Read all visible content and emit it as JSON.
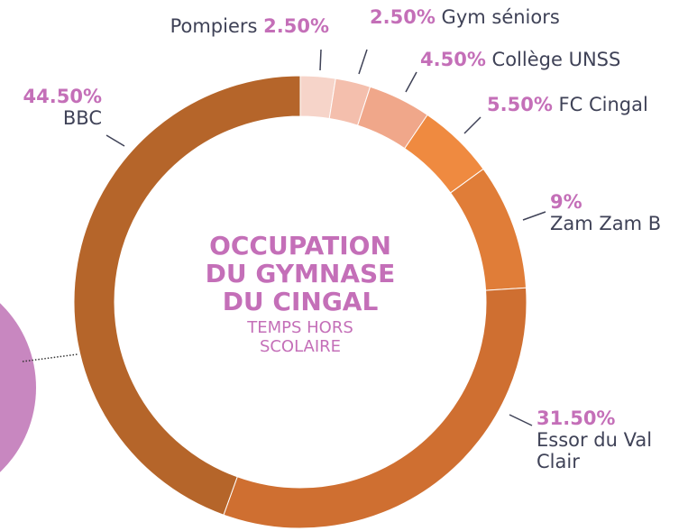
{
  "chart_data": {
    "type": "donut",
    "title": "OCCUPATION DU GYMNASE DU CINGAL",
    "subtitle": "TEMPS HORS SCOLAIRE",
    "categories": [
      "Pompiers",
      "Gym séniors",
      "Collège UNSS",
      "FC Cingal",
      "Zam Zam B",
      "Essor du Val Clair",
      "BBC"
    ],
    "values": [
      2.5,
      2.5,
      4.5,
      5.5,
      9,
      31.5,
      44.5
    ],
    "value_labels": [
      "2.50%",
      "2.50%",
      "4.50%",
      "5.50%",
      "9%",
      "31.50%",
      "44.50%"
    ],
    "colors": [
      "#f6d4c9",
      "#f4bfad",
      "#f0a78a",
      "#ef8a40",
      "#e07d38",
      "#cf6f31",
      "#b5652a"
    ]
  }
}
